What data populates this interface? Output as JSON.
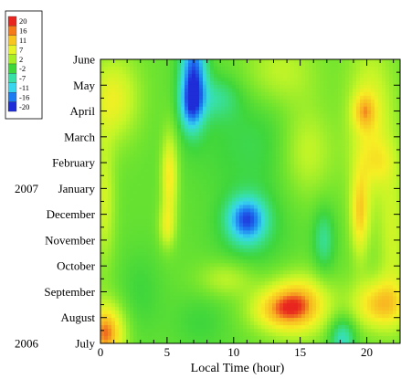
{
  "chart_data": {
    "type": "heatmap",
    "xlabel": "Local Time (hour)",
    "x_ticks": [
      "0",
      "5",
      "10",
      "15",
      "20"
    ],
    "x_tick_values": [
      0,
      5,
      10,
      15,
      20
    ],
    "xlim": [
      0,
      22.5
    ],
    "y_ticks": [
      "July",
      "August",
      "September",
      "October",
      "November",
      "December",
      "January",
      "February",
      "March",
      "April",
      "May",
      "June"
    ],
    "ylim": [
      0,
      11
    ],
    "year_labels": [
      {
        "label": "2006",
        "at_month": "July"
      },
      {
        "label": "2007",
        "at_month": "January"
      }
    ],
    "legend": {
      "levels": [
        "20",
        "16",
        "11",
        "7",
        "2",
        "-2",
        "-7",
        "-11",
        "-16",
        "-20"
      ],
      "colors": [
        "#e8251e",
        "#f57a1a",
        "#f8c41e",
        "#e6f326",
        "#a6ef27",
        "#3fd63c",
        "#37e0a6",
        "#37d5ee",
        "#1e7cf2",
        "#1f2dd8"
      ]
    },
    "colormap": {
      "stops": [
        {
          "v": -20,
          "c": "#1f2dd8"
        },
        {
          "v": -16,
          "c": "#1e7cf2"
        },
        {
          "v": -11,
          "c": "#37d5ee"
        },
        {
          "v": -7,
          "c": "#37e0a6"
        },
        {
          "v": -2,
          "c": "#3fd63c"
        },
        {
          "v": 2,
          "c": "#74e52e"
        },
        {
          "v": 7,
          "c": "#c6f527"
        },
        {
          "v": 11,
          "c": "#f6ef24"
        },
        {
          "v": 16,
          "c": "#f8b421"
        },
        {
          "v": 20,
          "c": "#e8251e"
        }
      ]
    },
    "base_value": 1,
    "features": [
      {
        "x": 7,
        "y": 10.5,
        "sx": 0.7,
        "sy": 1.3,
        "a": -18
      },
      {
        "x": 6.8,
        "y": 9.2,
        "sx": 0.6,
        "sy": 0.7,
        "a": -10
      },
      {
        "x": 8.8,
        "y": 9.5,
        "sx": 1.2,
        "sy": 0.6,
        "a": -6
      },
      {
        "x": 11,
        "y": 4.8,
        "sx": 1.0,
        "sy": 0.6,
        "a": -16
      },
      {
        "x": 11.3,
        "y": 4.3,
        "sx": 2.0,
        "sy": 1.2,
        "a": -4
      },
      {
        "x": 16.8,
        "y": 4.0,
        "sx": 0.6,
        "sy": 0.9,
        "a": -7
      },
      {
        "x": 12,
        "y": 7.8,
        "sx": 3.5,
        "sy": 1.5,
        "a": -4
      },
      {
        "x": 18.2,
        "y": 0.2,
        "sx": 0.7,
        "sy": 0.6,
        "a": -10
      },
      {
        "x": 7.5,
        "y": 0.8,
        "sx": 1.5,
        "sy": 0.8,
        "a": -3
      },
      {
        "x": 0.4,
        "y": 0.4,
        "sx": 1.0,
        "sy": 0.8,
        "a": 17
      },
      {
        "x": 15,
        "y": 1.5,
        "sx": 1.6,
        "sy": 0.8,
        "a": 15
      },
      {
        "x": 13,
        "y": 1.3,
        "sx": 1.5,
        "sy": 0.6,
        "a": 9
      },
      {
        "x": 21,
        "y": 1.5,
        "sx": 1.5,
        "sy": 0.7,
        "a": 13
      },
      {
        "x": 19.5,
        "y": 5,
        "sx": 0.5,
        "sy": 1.2,
        "a": 11
      },
      {
        "x": 20.3,
        "y": 8.5,
        "sx": 1.3,
        "sy": 2.2,
        "a": 9
      },
      {
        "x": 19.8,
        "y": 9,
        "sx": 0.6,
        "sy": 0.5,
        "a": 8
      },
      {
        "x": 15.5,
        "y": 7.5,
        "sx": 1.5,
        "sy": 1.3,
        "a": 8
      },
      {
        "x": 5.2,
        "y": 6.5,
        "sx": 0.45,
        "sy": 1.2,
        "a": 11
      },
      {
        "x": 5.0,
        "y": 4.5,
        "sx": 0.45,
        "sy": 0.6,
        "a": 7
      },
      {
        "x": 1.0,
        "y": 9.5,
        "sx": 1.4,
        "sy": 1.2,
        "a": 9
      },
      {
        "x": 0.3,
        "y": 5.5,
        "sx": 0.6,
        "sy": 1.8,
        "a": 7
      },
      {
        "x": 9.5,
        "y": 2.5,
        "sx": 1.5,
        "sy": 0.5,
        "a": 6
      },
      {
        "x": 13.5,
        "y": 10.5,
        "sx": 2.0,
        "sy": 1.0,
        "a": 6
      },
      {
        "x": 22,
        "y": 4,
        "sx": 0.8,
        "sy": 2.0,
        "a": 6
      },
      {
        "x": 3,
        "y": 2,
        "sx": 1.2,
        "sy": 1.2,
        "a": -3
      },
      {
        "x": 21,
        "y": 7,
        "sx": 0.9,
        "sy": 0.6,
        "a": 4
      }
    ]
  }
}
